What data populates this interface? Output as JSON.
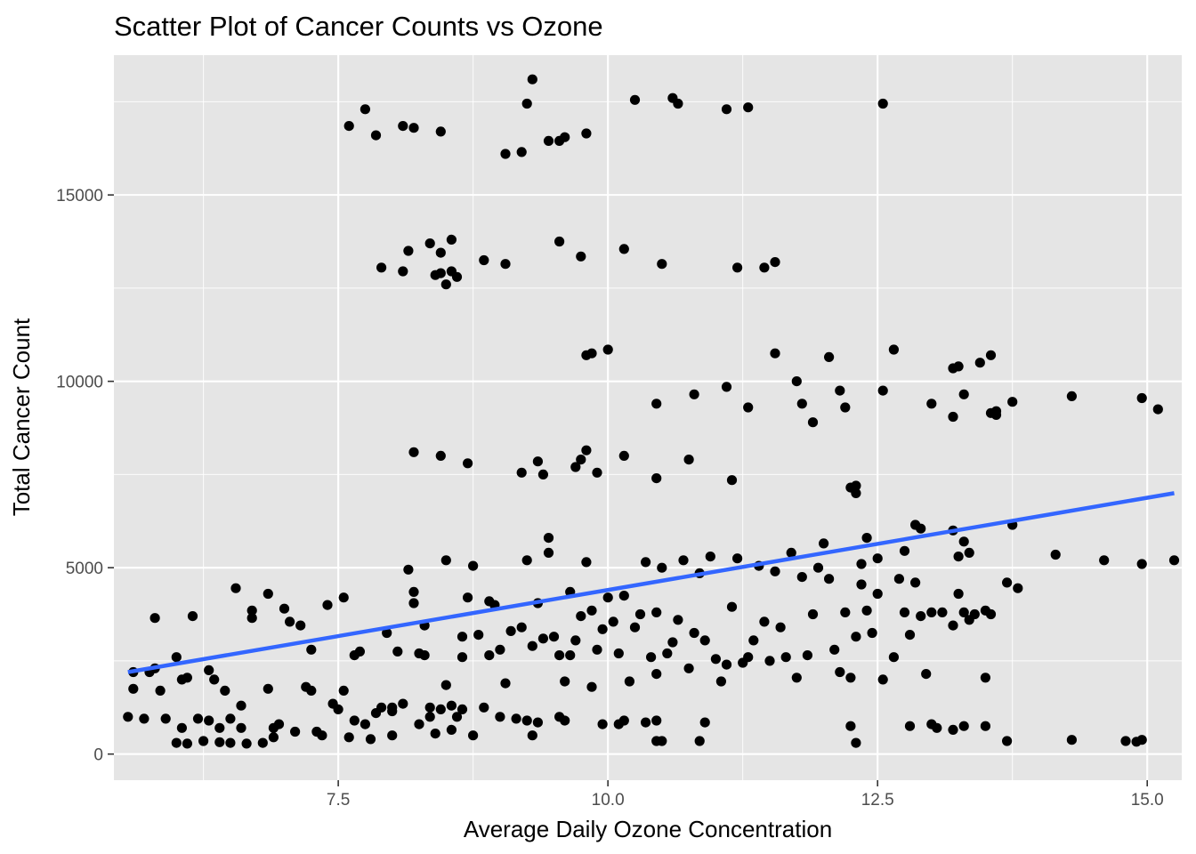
{
  "chart_data": {
    "type": "scatter",
    "title": "Scatter Plot of Cancer Counts vs Ozone",
    "xlabel": "Average Daily Ozone Concentration",
    "ylabel": "Total Cancer Count",
    "xlim": [
      5.42,
      15.32
    ],
    "ylim": [
      -700,
      18750
    ],
    "x_ticks": [
      7.5,
      10.0,
      12.5,
      15.0
    ],
    "x_tick_labels": [
      "7.5",
      "10.0",
      "12.5",
      "15.0"
    ],
    "y_ticks": [
      0,
      5000,
      10000,
      15000
    ],
    "y_tick_labels": [
      "0",
      "5000",
      "10000",
      "15000"
    ],
    "grid": true,
    "panel_background": "#e5e5e5",
    "point_color": "#000000",
    "trend_color": "#3366ff",
    "trend_line": {
      "x": [
        5.55,
        15.25
      ],
      "y": [
        2200,
        7000
      ]
    },
    "points": [
      [
        9.3,
        18100
      ],
      [
        7.75,
        17300
      ],
      [
        7.6,
        16850
      ],
      [
        7.85,
        16600
      ],
      [
        8.1,
        16850
      ],
      [
        8.2,
        16800
      ],
      [
        8.45,
        16700
      ],
      [
        9.25,
        17450
      ],
      [
        9.2,
        16150
      ],
      [
        9.05,
        16100
      ],
      [
        9.45,
        16450
      ],
      [
        9.55,
        16450
      ],
      [
        9.6,
        16550
      ],
      [
        9.8,
        16650
      ],
      [
        10.25,
        17550
      ],
      [
        10.6,
        17600
      ],
      [
        10.65,
        17450
      ],
      [
        11.1,
        17300
      ],
      [
        11.3,
        17350
      ],
      [
        12.55,
        17450
      ],
      [
        7.9,
        13050
      ],
      [
        8.1,
        12950
      ],
      [
        8.15,
        13500
      ],
      [
        8.35,
        13700
      ],
      [
        8.4,
        12850
      ],
      [
        8.45,
        13450
      ],
      [
        8.45,
        12900
      ],
      [
        8.5,
        12600
      ],
      [
        8.55,
        13800
      ],
      [
        8.55,
        12950
      ],
      [
        8.6,
        12800
      ],
      [
        8.85,
        13250
      ],
      [
        9.05,
        13150
      ],
      [
        9.55,
        13750
      ],
      [
        9.75,
        13350
      ],
      [
        10.15,
        13550
      ],
      [
        10.5,
        13150
      ],
      [
        11.2,
        13050
      ],
      [
        11.45,
        13050
      ],
      [
        11.55,
        13200
      ],
      [
        9.8,
        10700
      ],
      [
        9.85,
        10750
      ],
      [
        10.0,
        10850
      ],
      [
        11.55,
        10750
      ],
      [
        12.05,
        10650
      ],
      [
        12.65,
        10850
      ],
      [
        13.2,
        10350
      ],
      [
        13.25,
        10400
      ],
      [
        13.45,
        10500
      ],
      [
        13.55,
        10700
      ],
      [
        10.45,
        9400
      ],
      [
        10.8,
        9650
      ],
      [
        11.1,
        9850
      ],
      [
        11.3,
        9300
      ],
      [
        11.75,
        10000
      ],
      [
        11.8,
        9400
      ],
      [
        11.9,
        8900
      ],
      [
        12.15,
        9750
      ],
      [
        12.2,
        9300
      ],
      [
        12.55,
        9750
      ],
      [
        13.0,
        9400
      ],
      [
        13.2,
        9050
      ],
      [
        13.3,
        9650
      ],
      [
        13.55,
        9150
      ],
      [
        13.6,
        9100
      ],
      [
        13.6,
        9200
      ],
      [
        13.75,
        9450
      ],
      [
        14.3,
        9600
      ],
      [
        14.95,
        9550
      ],
      [
        15.1,
        9250
      ],
      [
        8.2,
        8100
      ],
      [
        8.45,
        8000
      ],
      [
        8.7,
        7800
      ],
      [
        9.2,
        7550
      ],
      [
        9.35,
        7850
      ],
      [
        9.4,
        7500
      ],
      [
        9.7,
        7700
      ],
      [
        9.75,
        7900
      ],
      [
        9.8,
        8150
      ],
      [
        9.9,
        7550
      ],
      [
        10.15,
        8000
      ],
      [
        10.45,
        7400
      ],
      [
        10.75,
        7900
      ],
      [
        11.15,
        7350
      ],
      [
        12.25,
        7150
      ],
      [
        12.3,
        7000
      ],
      [
        12.3,
        7200
      ],
      [
        12.4,
        5800
      ],
      [
        12.35,
        5100
      ],
      [
        12.5,
        5250
      ],
      [
        12.75,
        5450
      ],
      [
        12.85,
        6150
      ],
      [
        12.9,
        6050
      ],
      [
        13.2,
        6000
      ],
      [
        13.25,
        5300
      ],
      [
        13.3,
        5700
      ],
      [
        13.35,
        5400
      ],
      [
        13.75,
        6150
      ],
      [
        14.15,
        5350
      ],
      [
        14.6,
        5200
      ],
      [
        14.95,
        5100
      ],
      [
        15.25,
        5200
      ],
      [
        13.8,
        4450
      ],
      [
        13.7,
        4600
      ],
      [
        5.55,
        1000
      ],
      [
        5.6,
        1750
      ],
      [
        5.6,
        2200
      ],
      [
        5.7,
        950
      ],
      [
        5.75,
        2200
      ],
      [
        5.8,
        3650
      ],
      [
        5.8,
        2300
      ],
      [
        5.85,
        1700
      ],
      [
        5.9,
        950
      ],
      [
        6.0,
        2600
      ],
      [
        6.0,
        300
      ],
      [
        6.05,
        700
      ],
      [
        6.05,
        2000
      ],
      [
        6.1,
        2050
      ],
      [
        6.1,
        280
      ],
      [
        6.15,
        3700
      ],
      [
        6.2,
        950
      ],
      [
        6.25,
        350
      ],
      [
        6.3,
        900
      ],
      [
        6.3,
        2250
      ],
      [
        6.35,
        2000
      ],
      [
        6.4,
        700
      ],
      [
        6.4,
        320
      ],
      [
        6.45,
        1700
      ],
      [
        6.5,
        950
      ],
      [
        6.5,
        300
      ],
      [
        6.55,
        4450
      ],
      [
        6.6,
        1300
      ],
      [
        6.6,
        700
      ],
      [
        6.65,
        280
      ],
      [
        6.7,
        3850
      ],
      [
        6.7,
        3650
      ],
      [
        6.8,
        300
      ],
      [
        6.85,
        4300
      ],
      [
        6.85,
        1750
      ],
      [
        6.9,
        700
      ],
      [
        6.9,
        450
      ],
      [
        6.95,
        800
      ],
      [
        7.0,
        3900
      ],
      [
        7.05,
        3550
      ],
      [
        7.1,
        600
      ],
      [
        7.15,
        3450
      ],
      [
        7.2,
        1800
      ],
      [
        7.25,
        1700
      ],
      [
        7.25,
        2800
      ],
      [
        7.3,
        600
      ],
      [
        7.35,
        500
      ],
      [
        7.4,
        4000
      ],
      [
        7.45,
        1350
      ],
      [
        7.5,
        1200
      ],
      [
        7.55,
        4200
      ],
      [
        7.55,
        1700
      ],
      [
        7.6,
        450
      ],
      [
        7.65,
        2650
      ],
      [
        7.7,
        2750
      ],
      [
        7.75,
        800
      ],
      [
        7.8,
        400
      ],
      [
        7.9,
        1250
      ],
      [
        7.95,
        3250
      ],
      [
        8.0,
        500
      ],
      [
        8.0,
        1150
      ],
      [
        8.05,
        2750
      ],
      [
        8.1,
        1350
      ],
      [
        8.15,
        4950
      ],
      [
        8.2,
        4350
      ],
      [
        8.2,
        4050
      ],
      [
        8.25,
        2700
      ],
      [
        8.3,
        2650
      ],
      [
        8.3,
        3450
      ],
      [
        8.35,
        1250
      ],
      [
        8.4,
        550
      ],
      [
        8.5,
        1850
      ],
      [
        8.5,
        5200
      ],
      [
        8.55,
        1300
      ],
      [
        8.6,
        1000
      ],
      [
        8.65,
        3150
      ],
      [
        8.65,
        2600
      ],
      [
        8.7,
        4200
      ],
      [
        8.75,
        5050
      ],
      [
        8.8,
        3200
      ],
      [
        8.85,
        1250
      ],
      [
        8.9,
        4100
      ],
      [
        8.9,
        2650
      ],
      [
        8.95,
        4000
      ],
      [
        9.0,
        2800
      ],
      [
        9.05,
        1900
      ],
      [
        9.1,
        3300
      ],
      [
        9.15,
        950
      ],
      [
        9.2,
        3400
      ],
      [
        9.25,
        5200
      ],
      [
        9.3,
        2900
      ],
      [
        9.35,
        4050
      ],
      [
        9.4,
        3100
      ],
      [
        9.45,
        5400
      ],
      [
        9.45,
        5800
      ],
      [
        9.5,
        3150
      ],
      [
        9.55,
        2650
      ],
      [
        9.6,
        1950
      ],
      [
        9.65,
        4350
      ],
      [
        9.65,
        2650
      ],
      [
        9.7,
        3050
      ],
      [
        9.75,
        3700
      ],
      [
        9.8,
        5150
      ],
      [
        9.85,
        3850
      ],
      [
        9.85,
        1800
      ],
      [
        9.9,
        2800
      ],
      [
        9.95,
        3350
      ],
      [
        10.0,
        4200
      ],
      [
        10.05,
        3550
      ],
      [
        10.1,
        2700
      ],
      [
        10.15,
        4250
      ],
      [
        10.2,
        1950
      ],
      [
        10.25,
        3400
      ],
      [
        10.3,
        3750
      ],
      [
        10.35,
        5150
      ],
      [
        10.4,
        2600
      ],
      [
        10.45,
        3800
      ],
      [
        10.45,
        2150
      ],
      [
        10.5,
        5000
      ],
      [
        10.55,
        2700
      ],
      [
        10.6,
        3000
      ],
      [
        10.65,
        3600
      ],
      [
        10.7,
        5200
      ],
      [
        10.75,
        2300
      ],
      [
        10.8,
        3250
      ],
      [
        10.85,
        4850
      ],
      [
        10.9,
        3050
      ],
      [
        10.95,
        5300
      ],
      [
        11.0,
        2550
      ],
      [
        11.05,
        1950
      ],
      [
        11.1,
        2400
      ],
      [
        11.15,
        3950
      ],
      [
        11.2,
        5250
      ],
      [
        11.25,
        2450
      ],
      [
        11.3,
        2600
      ],
      [
        11.35,
        3050
      ],
      [
        11.4,
        5050
      ],
      [
        11.45,
        3550
      ],
      [
        11.5,
        2500
      ],
      [
        11.55,
        4900
      ],
      [
        11.6,
        3400
      ],
      [
        11.65,
        2600
      ],
      [
        11.7,
        5400
      ],
      [
        11.75,
        2050
      ],
      [
        11.8,
        4750
      ],
      [
        11.85,
        2650
      ],
      [
        11.9,
        3750
      ],
      [
        11.95,
        5000
      ],
      [
        12.0,
        5650
      ],
      [
        12.05,
        4700
      ],
      [
        12.1,
        2800
      ],
      [
        12.15,
        2200
      ],
      [
        12.2,
        3800
      ],
      [
        12.25,
        2050
      ],
      [
        12.3,
        3150
      ],
      [
        12.35,
        4550
      ],
      [
        12.4,
        3850
      ],
      [
        12.45,
        3250
      ],
      [
        12.5,
        4300
      ],
      [
        12.55,
        2000
      ],
      [
        12.65,
        2600
      ],
      [
        12.7,
        4700
      ],
      [
        12.75,
        3800
      ],
      [
        12.8,
        3200
      ],
      [
        12.85,
        4600
      ],
      [
        12.9,
        3700
      ],
      [
        12.95,
        2150
      ],
      [
        13.0,
        3800
      ],
      [
        13.1,
        3800
      ],
      [
        13.2,
        3450
      ],
      [
        13.25,
        4300
      ],
      [
        13.3,
        3800
      ],
      [
        13.35,
        3600
      ],
      [
        13.4,
        3750
      ],
      [
        13.5,
        3850
      ],
      [
        13.55,
        3750
      ],
      [
        13.5,
        2050
      ],
      [
        7.65,
        900
      ],
      [
        7.85,
        1100
      ],
      [
        8.0,
        1250
      ],
      [
        8.25,
        800
      ],
      [
        8.35,
        1000
      ],
      [
        8.45,
        1200
      ],
      [
        8.55,
        650
      ],
      [
        8.65,
        1200
      ],
      [
        8.75,
        500
      ],
      [
        9.0,
        1000
      ],
      [
        9.25,
        900
      ],
      [
        9.3,
        500
      ],
      [
        9.35,
        850
      ],
      [
        9.55,
        1000
      ],
      [
        9.6,
        900
      ],
      [
        9.95,
        800
      ],
      [
        10.1,
        800
      ],
      [
        10.15,
        900
      ],
      [
        10.35,
        850
      ],
      [
        10.45,
        900
      ],
      [
        10.45,
        350
      ],
      [
        10.5,
        350
      ],
      [
        10.9,
        850
      ],
      [
        10.85,
        350
      ],
      [
        12.25,
        750
      ],
      [
        12.3,
        300
      ],
      [
        12.8,
        750
      ],
      [
        13.0,
        800
      ],
      [
        13.05,
        700
      ],
      [
        13.2,
        650
      ],
      [
        13.3,
        750
      ],
      [
        13.5,
        750
      ],
      [
        13.7,
        350
      ],
      [
        14.3,
        380
      ],
      [
        14.8,
        350
      ],
      [
        14.9,
        330
      ],
      [
        14.95,
        380
      ]
    ]
  }
}
